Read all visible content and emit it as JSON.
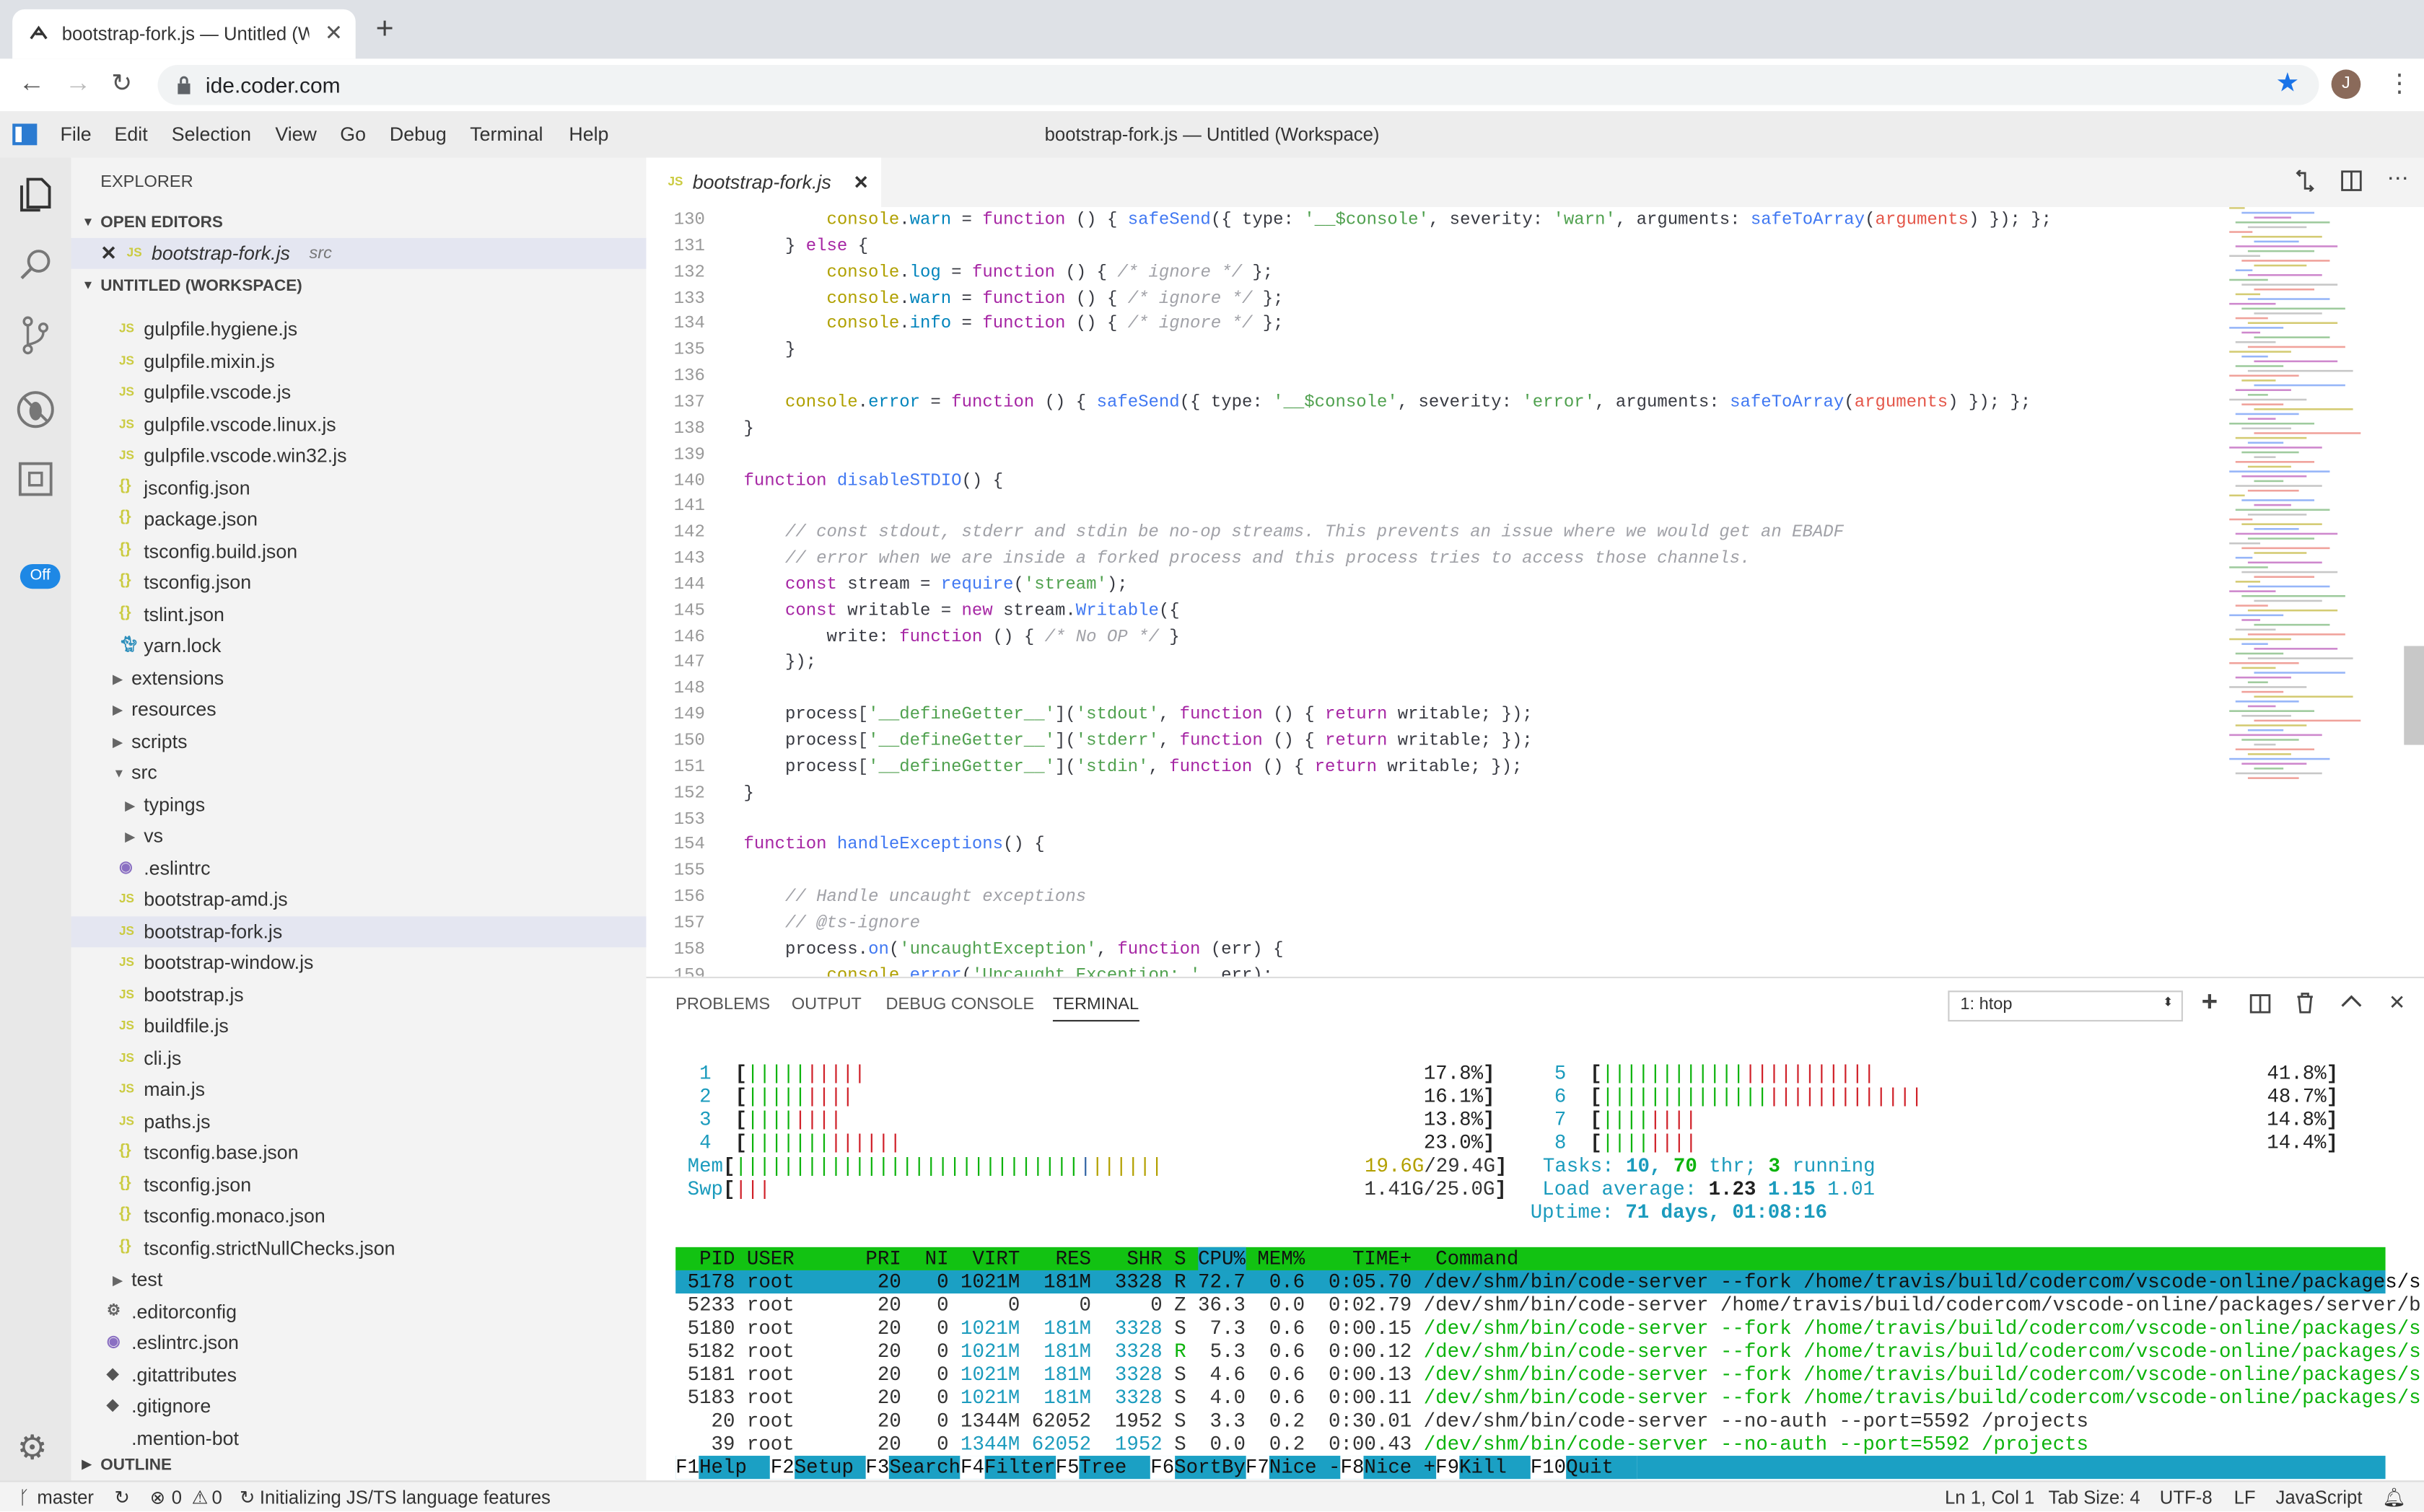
{
  "browser": {
    "tab_title": "bootstrap-fork.js — Untitled (W",
    "url": "ide.coder.com",
    "avatar_letter": "J",
    "star_color": "#1a73e8"
  },
  "menu": {
    "items": [
      "File",
      "Edit",
      "Selection",
      "View",
      "Go",
      "Debug",
      "Terminal",
      "Help"
    ],
    "window_title": "bootstrap-fork.js — Untitled (Workspace)"
  },
  "activity": {
    "off_badge": "Off"
  },
  "sidebar": {
    "title": "EXPLORER",
    "open_editors": "OPEN EDITORS",
    "open_file": "bootstrap-fork.js",
    "open_file_dir": "src",
    "workspace": "UNTITLED (WORKSPACE)",
    "outline": "OUTLINE",
    "items": [
      {
        "label": "gulpfile.hygiene.js",
        "icon": "js",
        "depth": 2
      },
      {
        "label": "gulpfile.mixin.js",
        "icon": "js",
        "depth": 2
      },
      {
        "label": "gulpfile.vscode.js",
        "icon": "js",
        "depth": 2
      },
      {
        "label": "gulpfile.vscode.linux.js",
        "icon": "js",
        "depth": 2
      },
      {
        "label": "gulpfile.vscode.win32.js",
        "icon": "js",
        "depth": 2
      },
      {
        "label": "jsconfig.json",
        "icon": "json",
        "depth": 2
      },
      {
        "label": "package.json",
        "icon": "json",
        "depth": 2
      },
      {
        "label": "tsconfig.build.json",
        "icon": "json",
        "depth": 2
      },
      {
        "label": "tsconfig.json",
        "icon": "json",
        "depth": 2
      },
      {
        "label": "tslint.json",
        "icon": "json",
        "depth": 2
      },
      {
        "label": "yarn.lock",
        "icon": "yarn",
        "depth": 2
      },
      {
        "label": "extensions",
        "icon": "folder",
        "depth": 1
      },
      {
        "label": "resources",
        "icon": "folder",
        "depth": 1
      },
      {
        "label": "scripts",
        "icon": "folder",
        "depth": 1
      },
      {
        "label": "src",
        "icon": "folder-open",
        "depth": 1
      },
      {
        "label": "typings",
        "icon": "folder",
        "depth": 2
      },
      {
        "label": "vs",
        "icon": "folder",
        "depth": 2
      },
      {
        "label": ".eslintrc",
        "icon": "eslint",
        "depth": 2
      },
      {
        "label": "bootstrap-amd.js",
        "icon": "js",
        "depth": 2
      },
      {
        "label": "bootstrap-fork.js",
        "icon": "js",
        "depth": 2,
        "selected": true
      },
      {
        "label": "bootstrap-window.js",
        "icon": "js",
        "depth": 2
      },
      {
        "label": "bootstrap.js",
        "icon": "js",
        "depth": 2
      },
      {
        "label": "buildfile.js",
        "icon": "js",
        "depth": 2
      },
      {
        "label": "cli.js",
        "icon": "js",
        "depth": 2
      },
      {
        "label": "main.js",
        "icon": "js",
        "depth": 2
      },
      {
        "label": "paths.js",
        "icon": "js",
        "depth": 2
      },
      {
        "label": "tsconfig.base.json",
        "icon": "json",
        "depth": 2
      },
      {
        "label": "tsconfig.json",
        "icon": "json",
        "depth": 2
      },
      {
        "label": "tsconfig.monaco.json",
        "icon": "json",
        "depth": 2
      },
      {
        "label": "tsconfig.strictNullChecks.json",
        "icon": "json",
        "depth": 2
      },
      {
        "label": "test",
        "icon": "folder",
        "depth": 1
      },
      {
        "label": ".editorconfig",
        "icon": "gear",
        "depth": 1
      },
      {
        "label": ".eslintrc.json",
        "icon": "eslint",
        "depth": 1
      },
      {
        "label": ".gitattributes",
        "icon": "git",
        "depth": 1
      },
      {
        "label": ".gitignore",
        "icon": "git",
        "depth": 1
      },
      {
        "label": ".mention-bot",
        "icon": "file",
        "depth": 1
      }
    ]
  },
  "editor": {
    "tab_label": "bootstrap-fork.js",
    "lines": [
      {
        "n": "130",
        "text": "        console.warn = function () { safeSend({ type: '__$console', severity: 'warn', arguments: safeToArray(arguments) }); };"
      },
      {
        "n": "131",
        "text": "    } else {"
      },
      {
        "n": "132",
        "text": "        console.log = function () { /* ignore */ };"
      },
      {
        "n": "133",
        "text": "        console.warn = function () { /* ignore */ };"
      },
      {
        "n": "134",
        "text": "        console.info = function () { /* ignore */ };"
      },
      {
        "n": "135",
        "text": "    }"
      },
      {
        "n": "136",
        "text": ""
      },
      {
        "n": "137",
        "text": "    console.error = function () { safeSend({ type: '__$console', severity: 'error', arguments: safeToArray(arguments) }); };"
      },
      {
        "n": "138",
        "text": "}"
      },
      {
        "n": "139",
        "text": ""
      },
      {
        "n": "140",
        "text": "function disableSTDIO() {"
      },
      {
        "n": "141",
        "text": ""
      },
      {
        "n": "142",
        "text": "    // const stdout, stderr and stdin be no-op streams. This prevents an issue where we would get an EBADF"
      },
      {
        "n": "143",
        "text": "    // error when we are inside a forked process and this process tries to access those channels."
      },
      {
        "n": "144",
        "text": "    const stream = require('stream');"
      },
      {
        "n": "145",
        "text": "    const writable = new stream.Writable({"
      },
      {
        "n": "146",
        "text": "        write: function () { /* No OP */ }"
      },
      {
        "n": "147",
        "text": "    });"
      },
      {
        "n": "148",
        "text": ""
      },
      {
        "n": "149",
        "text": "    process['__defineGetter__']('stdout', function () { return writable; });"
      },
      {
        "n": "150",
        "text": "    process['__defineGetter__']('stderr', function () { return writable; });"
      },
      {
        "n": "151",
        "text": "    process['__defineGetter__']('stdin', function () { return writable; });"
      },
      {
        "n": "152",
        "text": "}"
      },
      {
        "n": "153",
        "text": ""
      },
      {
        "n": "154",
        "text": "function handleExceptions() {"
      },
      {
        "n": "155",
        "text": ""
      },
      {
        "n": "156",
        "text": "    // Handle uncaught exceptions"
      },
      {
        "n": "157",
        "text": "    // @ts-ignore"
      },
      {
        "n": "158",
        "text": "    process.on('uncaughtException', function (err) {"
      },
      {
        "n": "159",
        "text": "        console.error('Uncaught Exception: ', err);"
      }
    ]
  },
  "panel": {
    "tabs": [
      "PROBLEMS",
      "OUTPUT",
      "DEBUG CONSOLE",
      "TERMINAL"
    ],
    "active_tab": 3,
    "terminal_select": "1: htop"
  },
  "htop": {
    "cpus": [
      {
        "id": "1",
        "pct": "17.8%"
      },
      {
        "id": "2",
        "pct": "16.1%"
      },
      {
        "id": "3",
        "pct": "13.8%"
      },
      {
        "id": "4",
        "pct": "23.0%"
      },
      {
        "id": "5",
        "pct": "41.8%"
      },
      {
        "id": "6",
        "pct": "48.7%"
      },
      {
        "id": "7",
        "pct": "14.8%"
      },
      {
        "id": "8",
        "pct": "14.4%"
      }
    ],
    "mem": {
      "label": "Mem",
      "used": "19.6G",
      "total": "29.4G",
      "fraction": 0.67
    },
    "swp": {
      "label": "Swp",
      "used": "1.41G",
      "total": "25.0G",
      "fraction": 0.06
    },
    "tasks": {
      "label": "Tasks:",
      "tasks": "10,",
      "thr": "70",
      "thr_label": "thr;",
      "running": "3",
      "running_label": "running"
    },
    "load": {
      "label": "Load average:",
      "l1": "1.23",
      "l5": "1.15",
      "l15": "1.01"
    },
    "uptime": {
      "label": "Uptime:",
      "value": "71 days, 01:08:16"
    },
    "columns": [
      "PID",
      "USER",
      "PRI",
      "NI",
      "VIRT",
      "RES",
      "SHR",
      "S",
      "CPU%",
      "MEM%",
      "TIME+",
      "Command"
    ],
    "processes": [
      {
        "pid": "5178",
        "user": "root",
        "pri": "20",
        "ni": "0",
        "virt": "1021M",
        "res": "181M",
        "shr": "3328",
        "s": "R",
        "cpu": "72.7",
        "mem": "0.6",
        "time": "0:05.70",
        "cmd": "/dev/shm/bin/code-server --fork /home/travis/build/codercom/vscode-online/packages/s",
        "style": "selected"
      },
      {
        "pid": "5233",
        "user": "root",
        "pri": "20",
        "ni": "0",
        "virt": "0",
        "res": "0",
        "shr": "0",
        "s": "Z",
        "cpu": "36.3",
        "mem": "0.0",
        "time": "0:02.79",
        "cmd": "/dev/shm/bin/code-server /home/travis/build/codercom/vscode-online/packages/server/b",
        "style": "normal"
      },
      {
        "pid": "5180",
        "user": "root",
        "pri": "20",
        "ni": "0",
        "virt": "1021M",
        "res": "181M",
        "shr": "3328",
        "s": "S",
        "cpu": "7.3",
        "mem": "0.6",
        "time": "0:00.15",
        "cmd": "/dev/shm/bin/code-server --fork /home/travis/build/codercom/vscode-online/packages/s",
        "style": "thread"
      },
      {
        "pid": "5182",
        "user": "root",
        "pri": "20",
        "ni": "0",
        "virt": "1021M",
        "res": "181M",
        "shr": "3328",
        "s": "R",
        "cpu": "5.3",
        "mem": "0.6",
        "time": "0:00.12",
        "cmd": "/dev/shm/bin/code-server --fork /home/travis/build/codercom/vscode-online/packages/s",
        "style": "thread"
      },
      {
        "pid": "5181",
        "user": "root",
        "pri": "20",
        "ni": "0",
        "virt": "1021M",
        "res": "181M",
        "shr": "3328",
        "s": "S",
        "cpu": "4.6",
        "mem": "0.6",
        "time": "0:00.13",
        "cmd": "/dev/shm/bin/code-server --fork /home/travis/build/codercom/vscode-online/packages/s",
        "style": "thread"
      },
      {
        "pid": "5183",
        "user": "root",
        "pri": "20",
        "ni": "0",
        "virt": "1021M",
        "res": "181M",
        "shr": "3328",
        "s": "S",
        "cpu": "4.0",
        "mem": "0.6",
        "time": "0:00.11",
        "cmd": "/dev/shm/bin/code-server --fork /home/travis/build/codercom/vscode-online/packages/s",
        "style": "thread"
      },
      {
        "pid": "20",
        "user": "root",
        "pri": "20",
        "ni": "0",
        "virt": "1344M",
        "res": "62052",
        "shr": "1952",
        "s": "S",
        "cpu": "3.3",
        "mem": "0.2",
        "time": "0:30.01",
        "cmd": "/dev/shm/bin/code-server --no-auth --port=5592 /projects",
        "style": "normal"
      },
      {
        "pid": "39",
        "user": "root",
        "pri": "20",
        "ni": "0",
        "virt": "1344M",
        "res": "62052",
        "shr": "1952",
        "s": "S",
        "cpu": "0.0",
        "mem": "0.2",
        "time": "0:00.43",
        "cmd": "/dev/shm/bin/code-server --no-auth --port=5592 /projects",
        "style": "thread"
      }
    ],
    "fkeys": [
      {
        "key": "F1",
        "label": "Help"
      },
      {
        "key": "F2",
        "label": "Setup"
      },
      {
        "key": "F3",
        "label": "Search"
      },
      {
        "key": "F4",
        "label": "Filter"
      },
      {
        "key": "F5",
        "label": "Tree"
      },
      {
        "key": "F6",
        "label": "SortBy"
      },
      {
        "key": "F7",
        "label": "Nice -"
      },
      {
        "key": "F8",
        "label": "Nice +"
      },
      {
        "key": "F9",
        "label": "Kill"
      },
      {
        "key": "F10",
        "label": "Quit"
      }
    ]
  },
  "status": {
    "branch": "master",
    "errors": "0",
    "warnings": "0",
    "message": "Initializing JS/TS language features",
    "position": "Ln 1, Col 1",
    "tab_size": "Tab Size: 4",
    "encoding": "UTF-8",
    "eol": "LF",
    "language": "JavaScript"
  }
}
